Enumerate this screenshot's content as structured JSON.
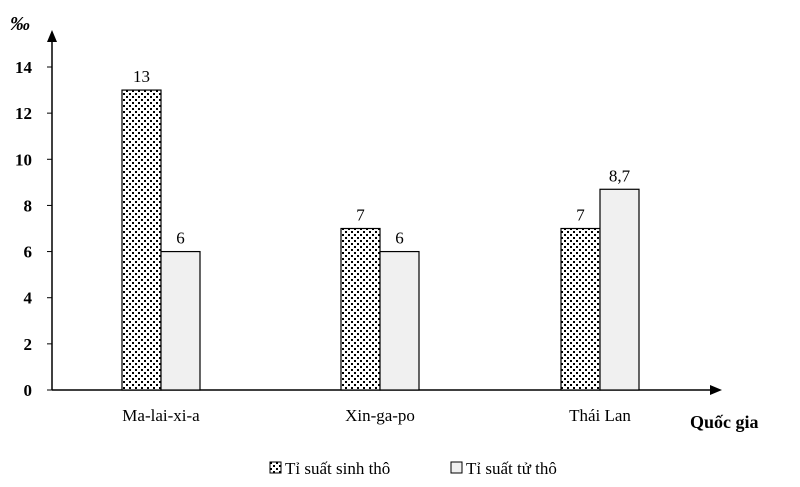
{
  "chart_data": {
    "type": "bar",
    "ylabel": "‰",
    "xlabel": "Quốc gia",
    "categories": [
      "Ma-lai-xi-a",
      "Xin-ga-po",
      "Thái Lan"
    ],
    "series": [
      {
        "name": "Tỉ suất sinh thô",
        "values": [
          13,
          7,
          7
        ],
        "labels": [
          "13",
          "7",
          "7"
        ]
      },
      {
        "name": "Tỉ suất tử thô",
        "values": [
          6,
          6,
          8.7
        ],
        "labels": [
          "6",
          "6",
          "8,7"
        ]
      }
    ],
    "ylim": [
      0,
      14
    ],
    "yticks": [
      "0",
      "2",
      "4",
      "6",
      "8",
      "10",
      "12",
      "14"
    ],
    "grid": false,
    "legend": "bottom-center",
    "colors": {
      "series2_fill": "#f0f0f0",
      "axis": "#000000"
    }
  }
}
